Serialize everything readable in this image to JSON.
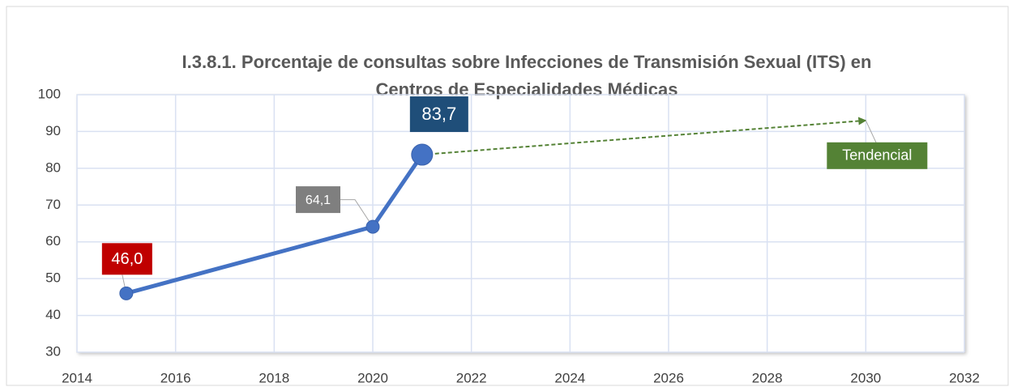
{
  "chart_data": {
    "type": "line",
    "title": "I.3.8.1. Porcentaje de consultas sobre Infecciones de Transmisión Sexual (ITS) en",
    "subtitle": "Centros de Especialidades Médicas",
    "x": [
      2015,
      2020,
      2021
    ],
    "series": [
      {
        "color": "#4472c4",
        "values": [
          46.0,
          64.1,
          83.7
        ],
        "value_labels": [
          "46,0",
          "64,1",
          "83,7"
        ],
        "label_colors": [
          "#c00000",
          "#7f7f7f",
          "#1f4e79"
        ]
      }
    ],
    "trend": {
      "x": [
        2021,
        2030
      ],
      "values": [
        83.7,
        93
      ],
      "label": "Tendencial",
      "color": "#548235"
    },
    "xlim": [
      2014,
      2032
    ],
    "xticks": [
      2014,
      2016,
      2018,
      2020,
      2022,
      2024,
      2026,
      2028,
      2030,
      2032
    ],
    "ylim": [
      30,
      100
    ],
    "yticks": [
      30,
      40,
      50,
      60,
      70,
      80,
      90,
      100
    ],
    "grid": true
  }
}
